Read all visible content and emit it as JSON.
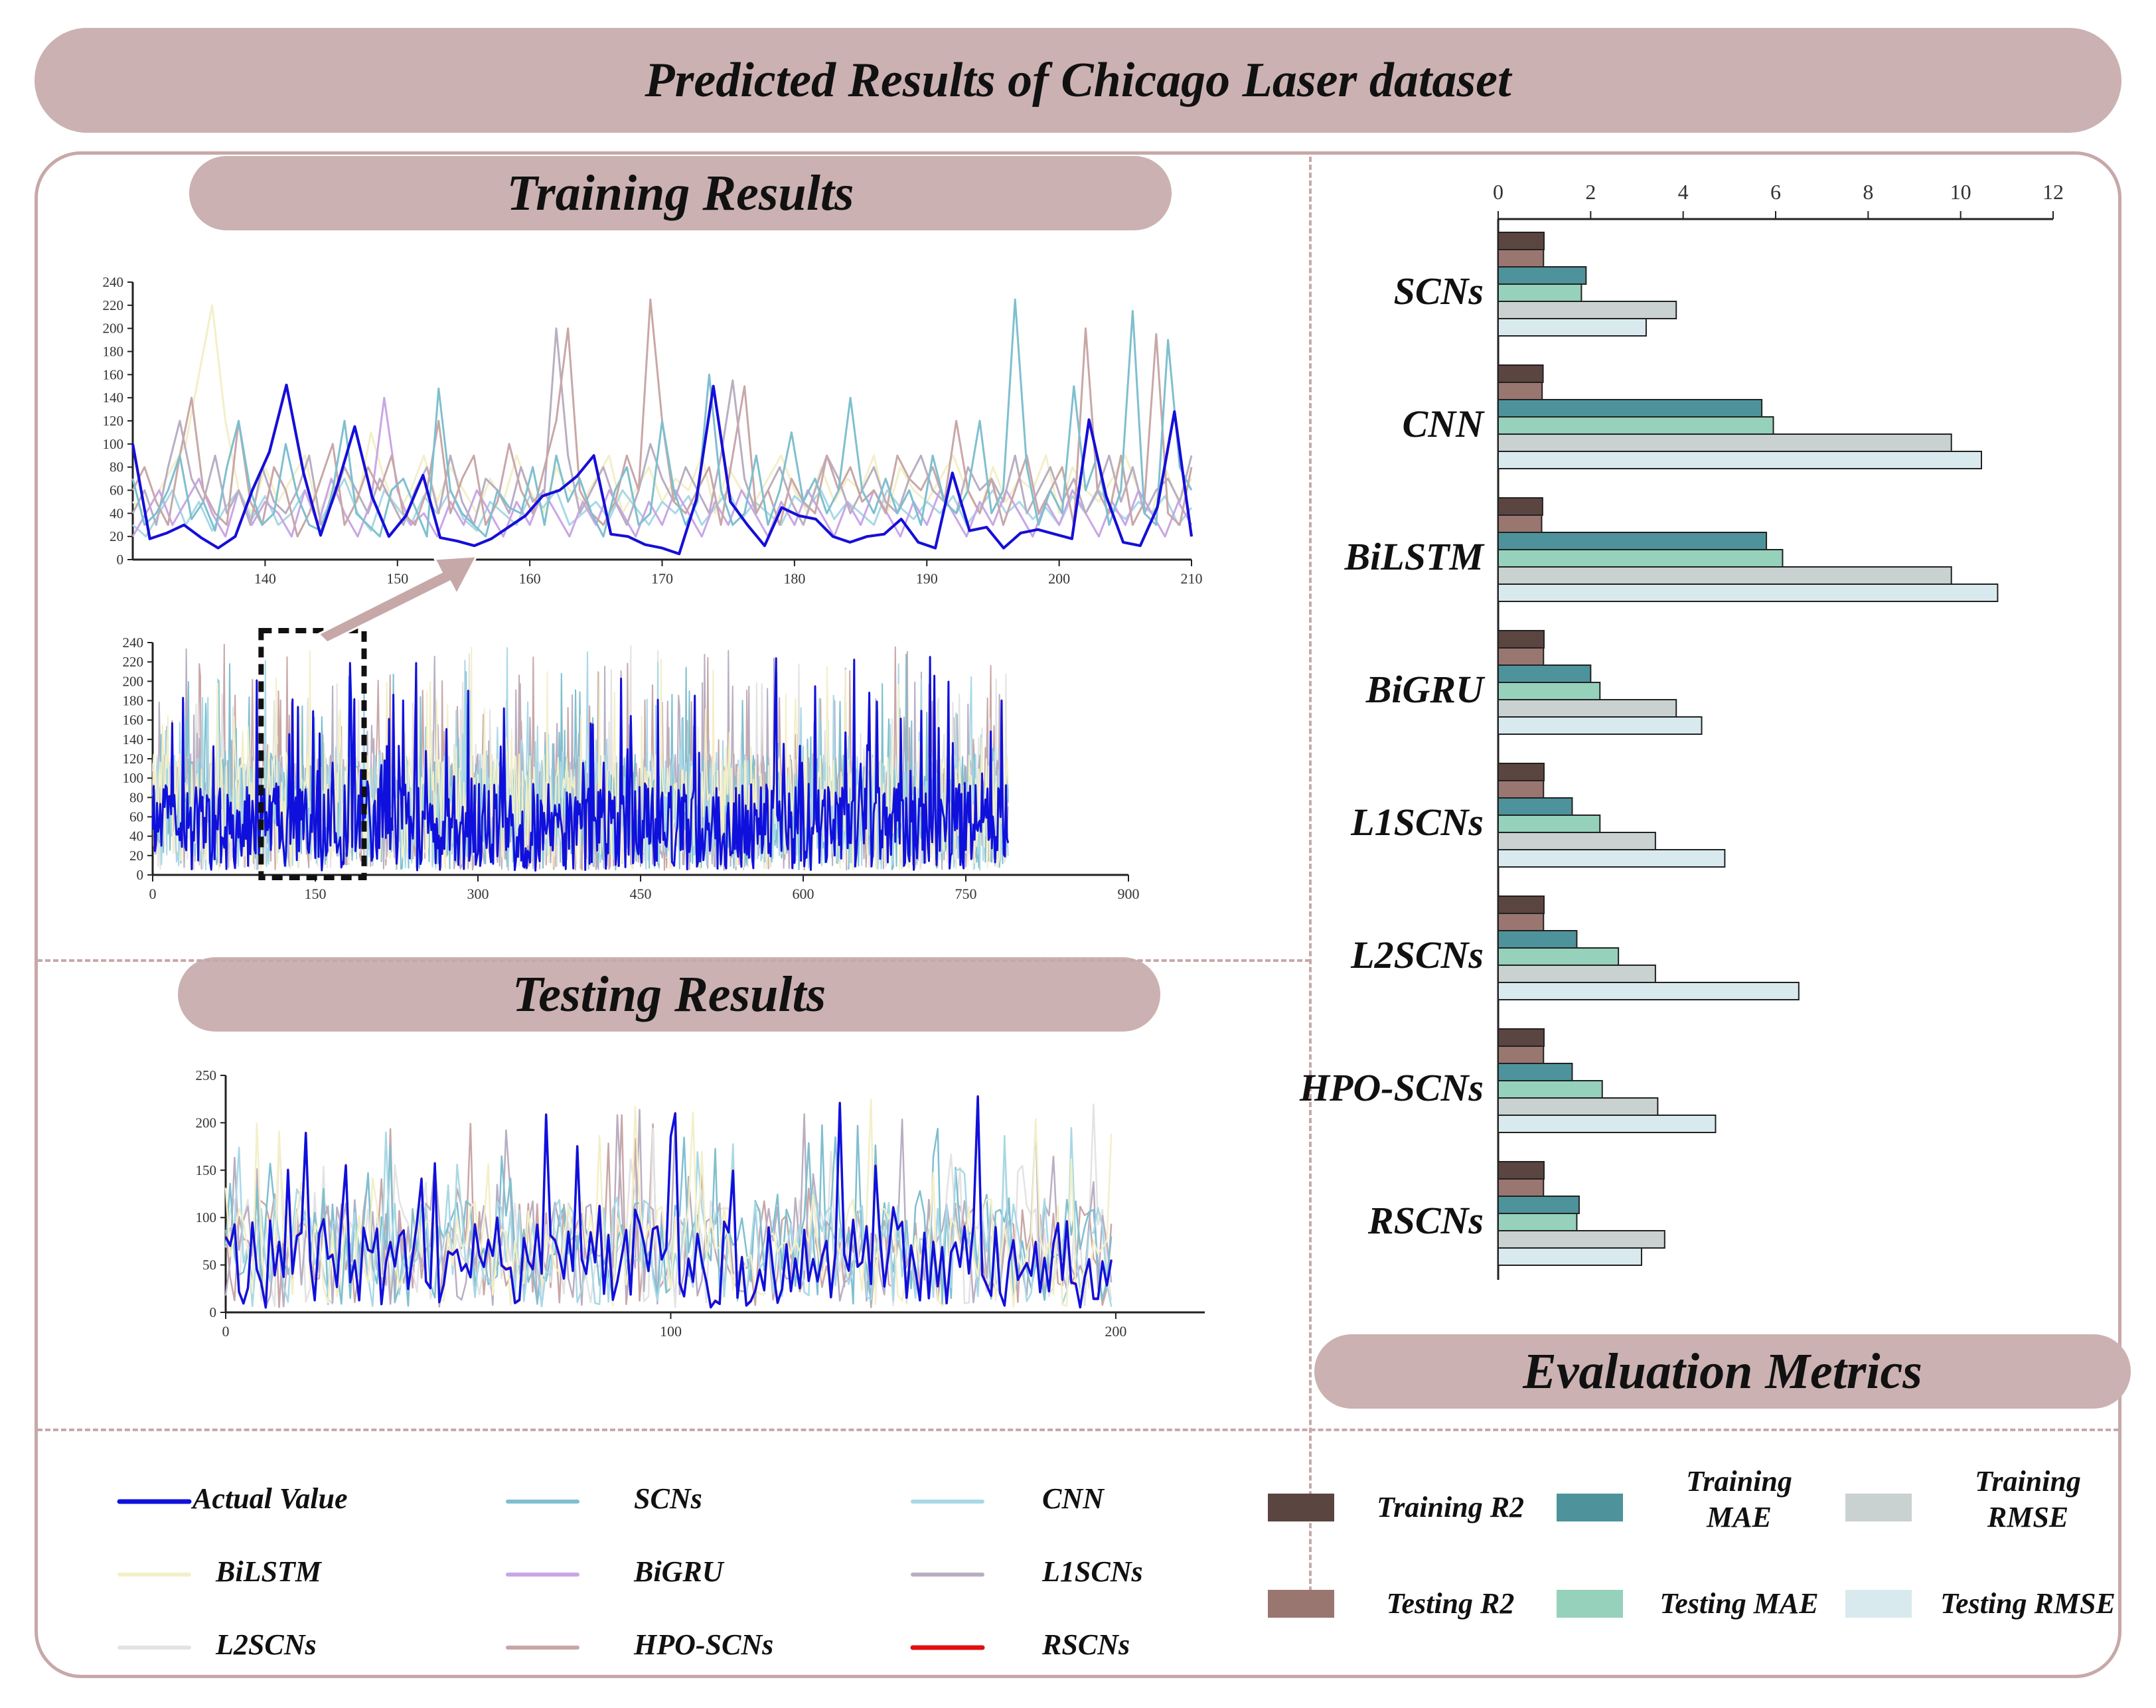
{
  "title": "Predicted Results of Chicago Laser dataset",
  "sections": {
    "training": "Training Results",
    "testing": "Testing Results",
    "metrics": "Evaluation Metrics"
  },
  "colors": {
    "Actual Value": "#1010dd",
    "SCNs": "#7fbfcf",
    "CNN": "#a9d8e6",
    "BiLSTM": "#f3efc8",
    "BiGRU": "#c9a6e6",
    "L1SCNs": "#b9aec2",
    "L2SCNs": "#e3e3e3",
    "HPO-SCNs": "#c9a7a7",
    "RSCNs": "#e01010",
    "Training R2": "#5b4541",
    "Testing R2": "#9a7670",
    "Training MAE": "#4e939b",
    "Testing MAE": "#95d1bb",
    "Training RMSE": "#c9d1d1",
    "Testing RMSE": "#d9eaee"
  },
  "legend": {
    "lines": [
      "Actual Value",
      "SCNs",
      "CNN",
      "BiLSTM",
      "BiGRU",
      "L1SCNs",
      "L2SCNs",
      "HPO-SCNs",
      "RSCNs"
    ],
    "boxes": [
      {
        "key": "Training R2",
        "label": "Training R2"
      },
      {
        "key": "Training MAE",
        "label": "Training\nMAE"
      },
      {
        "key": "Training RMSE",
        "label": "Training\nRMSE"
      },
      {
        "key": "Testing R2",
        "label": "Testing R2"
      },
      {
        "key": "Testing MAE",
        "label": "Testing MAE"
      },
      {
        "key": "Testing RMSE",
        "label": "Testing RMSE"
      }
    ]
  },
  "chart_data": [
    {
      "id": "training-zoom",
      "type": "line",
      "title": "Training Results (zoom)",
      "xlim": [
        130,
        210
      ],
      "ylim": [
        0,
        240
      ],
      "xticks": [
        140,
        150,
        160,
        170,
        180,
        190,
        200,
        210
      ],
      "yticks": [
        0,
        20,
        40,
        60,
        80,
        100,
        120,
        140,
        160,
        180,
        200,
        220,
        240
      ],
      "series": [
        {
          "name": "Actual Value",
          "x_start": 130,
          "values": [
            100,
            18,
            23,
            30,
            19,
            10,
            20,
            60,
            93,
            151,
            75,
            21,
            65,
            115,
            55,
            20,
            38,
            73,
            19,
            16,
            12,
            18,
            28,
            38,
            55,
            60,
            72,
            90,
            22,
            20,
            13,
            10,
            5,
            52,
            150,
            50,
            30,
            12,
            45,
            38,
            35,
            20,
            15,
            20,
            22,
            35,
            15,
            10,
            75,
            25,
            28,
            10,
            23,
            26,
            22,
            18,
            121,
            55,
            15,
            12,
            45,
            128,
            20
          ]
        },
        {
          "name": "SCNs",
          "x_start": 130,
          "values": [
            70,
            30,
            40,
            60,
            90,
            35,
            50,
            25,
            80,
            120,
            60,
            30,
            40,
            100,
            55,
            30,
            25,
            60,
            120,
            40,
            30,
            20,
            60,
            70,
            45,
            20,
            148,
            60,
            40,
            30,
            20,
            60,
            45,
            40,
            80,
            30,
            90,
            50,
            70,
            40,
            20,
            60,
            80,
            30,
            40,
            120,
            60,
            30,
            50,
            160,
            60,
            30,
            40,
            90,
            30,
            60,
            110,
            50,
            70,
            40,
            60,
            140,
            60,
            40,
            70,
            40,
            60,
            30,
            90,
            50,
            40,
            60,
            120,
            40,
            60,
            225,
            80,
            30,
            60,
            40,
            150,
            60,
            90,
            30,
            60,
            215,
            40,
            30,
            190,
            80,
            60
          ]
        },
        {
          "name": "HPO-SCNs",
          "x_start": 130,
          "values": [
            60,
            80,
            50,
            30,
            90,
            140,
            60,
            40,
            30,
            120,
            50,
            30,
            80,
            60,
            20,
            40,
            70,
            100,
            30,
            50,
            80,
            60,
            90,
            40,
            30,
            60,
            120,
            40,
            70,
            90,
            30,
            50,
            100,
            60,
            40,
            80,
            120,
            200,
            60,
            40,
            30,
            50,
            90,
            60,
            225,
            120,
            50,
            40,
            60,
            80,
            30,
            90,
            150,
            40,
            60,
            30,
            70,
            50,
            40,
            90,
            60,
            80,
            50,
            60,
            40,
            90,
            70,
            60,
            80,
            50,
            120,
            60,
            40,
            70,
            30,
            60,
            90,
            40,
            60,
            80,
            30,
            200,
            60,
            40,
            90,
            30,
            50,
            195,
            40,
            30,
            80
          ]
        },
        {
          "name": "L1SCNs",
          "x_start": 130,
          "values": [
            40,
            60,
            30,
            80,
            120,
            70,
            50,
            90,
            40,
            60,
            30,
            80,
            50,
            40,
            60,
            90,
            30,
            50,
            80,
            60,
            40,
            70,
            50,
            30,
            60,
            80,
            40,
            90,
            50,
            30,
            70,
            60,
            40,
            80,
            50,
            60,
            200,
            90,
            40,
            60,
            80,
            50,
            30,
            60,
            100,
            70,
            50,
            80,
            60,
            40,
            90,
            155,
            70,
            40,
            60,
            80,
            50,
            30,
            60,
            90,
            70,
            40,
            60,
            80,
            50,
            40,
            70,
            90,
            60,
            50,
            40,
            80,
            60,
            70,
            50,
            90,
            40,
            60,
            80,
            50,
            70,
            40,
            60,
            90,
            50,
            80,
            40,
            60,
            70,
            50,
            90
          ]
        },
        {
          "name": "CNN",
          "x_start": 130,
          "values": [
            30,
            20,
            40,
            60,
            30,
            50,
            25,
            45,
            60,
            35,
            55,
            30,
            40,
            60,
            30,
            50,
            70,
            40,
            25,
            60,
            45,
            30,
            55,
            40,
            60,
            35,
            25,
            50,
            40,
            30,
            55,
            45,
            60,
            30,
            40,
            50,
            35,
            60,
            45,
            30,
            50,
            40,
            55,
            30,
            45,
            60,
            35,
            50,
            40,
            30,
            55,
            45,
            60,
            35,
            50,
            40,
            30,
            60,
            45,
            35,
            50,
            40,
            55,
            30,
            45,
            60,
            40,
            50,
            35,
            45,
            30,
            55,
            40,
            60,
            45,
            35,
            50,
            40,
            55,
            30,
            45
          ]
        },
        {
          "name": "BiLSTM",
          "x_start": 130,
          "values": [
            50,
            40,
            60,
            80,
            100,
            160,
            220,
            120,
            60,
            40,
            80,
            50,
            70,
            90,
            40,
            60,
            80,
            50,
            110,
            70,
            40,
            60,
            90,
            50,
            80,
            60,
            40,
            70,
            50,
            90,
            60,
            40,
            80,
            60,
            50,
            70,
            90,
            40,
            60,
            80,
            50,
            70,
            60,
            90,
            40,
            80,
            60,
            50,
            70,
            90,
            60,
            40,
            80,
            50,
            70,
            60,
            90,
            40,
            80,
            60,
            50,
            70,
            90,
            60,
            40,
            80,
            50,
            70,
            60,
            90,
            40,
            80,
            60,
            50,
            70,
            90,
            60,
            40,
            80,
            50,
            70
          ]
        },
        {
          "name": "BiGRU",
          "x_start": 130,
          "values": [
            20,
            40,
            60,
            30,
            50,
            70,
            40,
            20,
            60,
            30,
            50,
            40,
            20,
            60,
            30,
            70,
            40,
            20,
            50,
            140,
            60,
            30,
            40,
            20,
            50,
            30,
            60,
            40,
            20,
            50,
            30,
            60,
            40,
            20,
            50,
            30,
            60,
            40,
            20,
            50,
            30,
            60,
            40,
            20,
            50,
            30,
            60,
            40,
            20,
            50,
            30,
            60,
            40,
            20,
            50,
            30,
            60,
            40,
            20,
            50,
            30,
            60,
            40,
            20,
            50,
            30,
            60,
            40,
            20,
            50,
            30,
            60,
            40,
            20,
            50,
            30,
            60,
            40,
            20,
            50,
            30
          ]
        },
        {
          "name": "RSCNs",
          "x_start": 130,
          "values": [
            100,
            18,
            23,
            30,
            19,
            10,
            20,
            60,
            93,
            151,
            75,
            21,
            65,
            115,
            55,
            20,
            38,
            73,
            19,
            16,
            12,
            18,
            28,
            38,
            55,
            60,
            72,
            90,
            22,
            20,
            13,
            10,
            5,
            52,
            150,
            50,
            30,
            12,
            45,
            38,
            35,
            20,
            15,
            20,
            22,
            35,
            15,
            10,
            75,
            25,
            28,
            10,
            23,
            26,
            22,
            18,
            121,
            55,
            15,
            12,
            45,
            128,
            20
          ]
        }
      ]
    },
    {
      "id": "training-full",
      "type": "line",
      "title": "Training Results (full)",
      "xlim": [
        0,
        900
      ],
      "ylim": [
        0,
        240
      ],
      "xticks": [
        0,
        150,
        300,
        450,
        600,
        750,
        900
      ],
      "yticks": [
        0,
        20,
        40,
        60,
        80,
        100,
        120,
        140,
        160,
        180,
        200,
        220,
        240
      ],
      "n_points": 790,
      "zoom_window": [
        100,
        195
      ]
    },
    {
      "id": "testing",
      "type": "line",
      "title": "Testing Results",
      "xlim": [
        0,
        220
      ],
      "ylim": [
        0,
        250
      ],
      "xticks": [
        0,
        100,
        200
      ],
      "yticks": [
        0,
        50,
        100,
        150,
        200,
        250
      ],
      "n_points": 200
    },
    {
      "id": "metrics",
      "type": "bar",
      "orientation": "horizontal",
      "title": "Evaluation Metrics",
      "xlim": [
        0,
        12
      ],
      "xticks": [
        0,
        2,
        4,
        6,
        8,
        10,
        12
      ],
      "metrics": [
        "Training R2",
        "Testing R2",
        "Training MAE",
        "Testing MAE",
        "Training RMSE",
        "Testing RMSE"
      ],
      "categories": [
        "SCNs",
        "CNN",
        "BiLSTM",
        "BiGRU",
        "L1SCNs",
        "L2SCNs",
        "HPO-SCNs",
        "RSCNs"
      ],
      "values": [
        [
          0.99,
          0.98,
          1.9,
          1.8,
          3.85,
          3.2
        ],
        [
          0.97,
          0.95,
          5.7,
          5.95,
          9.8,
          10.45
        ],
        [
          0.96,
          0.94,
          5.8,
          6.15,
          9.8,
          10.8
        ],
        [
          0.99,
          0.98,
          2.0,
          2.2,
          3.85,
          4.4
        ],
        [
          0.99,
          0.98,
          1.6,
          2.2,
          3.4,
          4.9
        ],
        [
          0.99,
          0.98,
          1.7,
          2.6,
          3.4,
          6.5
        ],
        [
          0.99,
          0.98,
          1.6,
          2.25,
          3.45,
          4.7
        ],
        [
          0.99,
          0.98,
          1.75,
          1.7,
          3.6,
          3.1
        ]
      ]
    }
  ]
}
